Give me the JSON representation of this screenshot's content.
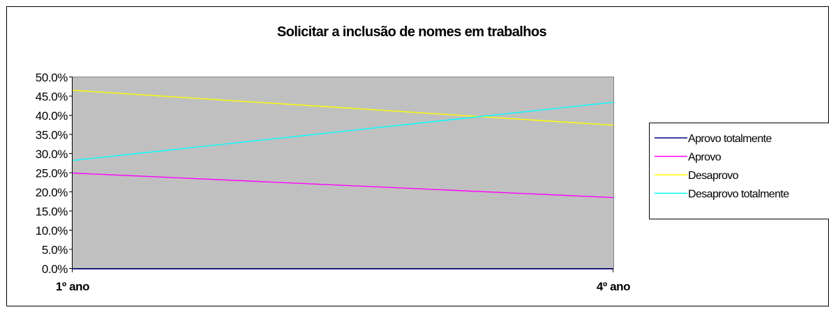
{
  "chart_data": {
    "type": "line",
    "title": "Solicitar a inclusão de nomes em trabalhos",
    "xlabel": "",
    "ylabel": "",
    "categories": [
      "1º ano",
      "4º ano"
    ],
    "ylim": [
      0,
      0.5
    ],
    "yticks": [
      "0.0%",
      "5.0%",
      "10.0%",
      "15.0%",
      "20.0%",
      "25.0%",
      "30.0%",
      "35.0%",
      "40.0%",
      "45.0%",
      "50.0%"
    ],
    "grid": false,
    "legend_position": "right",
    "plot_background": "#c0c0c0",
    "series": [
      {
        "name": "Aprovo totalmente",
        "color": "#000080",
        "values": [
          0.0,
          0.0
        ]
      },
      {
        "name": "Aprovo",
        "color": "#ff00ff",
        "values": [
          0.25,
          0.186
        ]
      },
      {
        "name": "Desaprovo",
        "color": "#ffff00",
        "values": [
          0.466,
          0.375
        ]
      },
      {
        "name": "Desaprovo totalmente",
        "color": "#00ffff",
        "values": [
          0.283,
          0.435
        ]
      }
    ]
  }
}
